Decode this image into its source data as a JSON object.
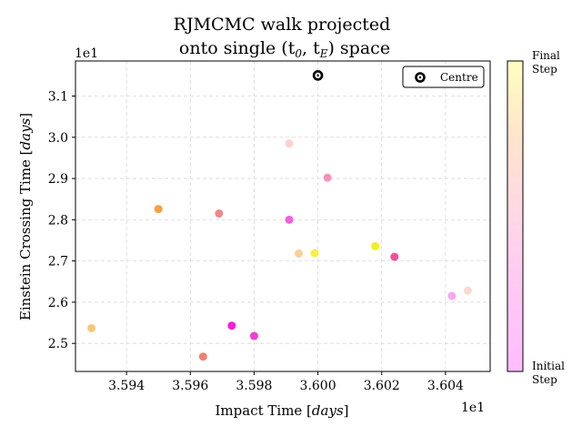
{
  "chart_data": {
    "type": "scatter",
    "title_line1": "RJMCMC walk projected",
    "title_line2": "onto single (t",
    "title_line2_sub0": "0",
    "title_line2_mid": ", t",
    "title_line2_subE": "E",
    "title_line2_end": ") space",
    "xlabel": "Impact Time [",
    "xlabel_unit": "days",
    "xlabel_close": "]",
    "ylabel": "Einstein Crossing Time [",
    "ylabel_unit": "days",
    "ylabel_close": "]",
    "x_multiplier": "1e1",
    "y_multiplier": "1e1",
    "xlim": [
      3.5924,
      3.6054
    ],
    "ylim": [
      2.432,
      3.185
    ],
    "xticks": [
      3.594,
      3.596,
      3.598,
      3.6,
      3.602,
      3.604
    ],
    "xtick_labels": [
      "3.594",
      "3.596",
      "3.598",
      "3.600",
      "3.602",
      "3.604"
    ],
    "yticks": [
      2.5,
      2.6,
      2.7,
      2.8,
      2.9,
      3.0,
      3.1
    ],
    "ytick_labels": [
      "2.5",
      "2.6",
      "2.7",
      "2.8",
      "2.9",
      "3.0",
      "3.1"
    ],
    "grid": true,
    "legend_position": "top-right",
    "legend_label": "Centre",
    "centre": {
      "x": 3.6,
      "y": 3.15
    },
    "colorbar": {
      "top_label_line1": "Final",
      "top_label_line2": "Step",
      "bottom_label_line1": "Initial",
      "bottom_label_line2": "Step",
      "colors": [
        "#ffffc0",
        "#ffe4cc",
        "#ffd8e8",
        "#ffc8f4",
        "#ffbcff"
      ]
    },
    "points": [
      {
        "x": 3.5929,
        "y": 2.537,
        "color": "#f8c878"
      },
      {
        "x": 3.595,
        "y": 2.826,
        "color": "#f4a040"
      },
      {
        "x": 3.5964,
        "y": 2.468,
        "color": "#f08070"
      },
      {
        "x": 3.5969,
        "y": 2.815,
        "color": "#f08888"
      },
      {
        "x": 3.5973,
        "y": 2.543,
        "color": "#f020d8"
      },
      {
        "x": 3.598,
        "y": 2.518,
        "color": "#f040d0"
      },
      {
        "x": 3.5991,
        "y": 2.985,
        "color": "#ffd0d0"
      },
      {
        "x": 3.5991,
        "y": 2.8,
        "color": "#f060e0"
      },
      {
        "x": 3.5994,
        "y": 2.718,
        "color": "#f8d098"
      },
      {
        "x": 3.5999,
        "y": 2.719,
        "color": "#f8f040"
      },
      {
        "x": 3.6003,
        "y": 2.902,
        "color": "#f890b8"
      },
      {
        "x": 3.6018,
        "y": 2.736,
        "color": "#f0f020"
      },
      {
        "x": 3.6024,
        "y": 2.71,
        "color": "#f05098"
      },
      {
        "x": 3.6042,
        "y": 2.615,
        "color": "#f8a8f0"
      },
      {
        "x": 3.6047,
        "y": 2.628,
        "color": "#fcd8d0"
      }
    ]
  }
}
